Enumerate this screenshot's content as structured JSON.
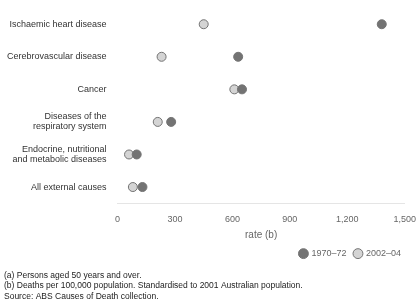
{
  "chart_data": {
    "type": "dot",
    "categories": [
      "Ischaemic heart disease",
      "Cerebrovascular disease",
      "Cancer",
      "Diseases of the\nrespiratory system",
      "Endocrine, nutritional\nand metabolic diseases",
      "All external causes"
    ],
    "series": [
      {
        "name": "1970–72",
        "color": "#737373",
        "marker": "circle",
        "values": [
          1380,
          630,
          650,
          280,
          100,
          130
        ]
      },
      {
        "name": "2002–04",
        "color": "#d4d4d4",
        "marker": "circle",
        "values": [
          450,
          230,
          610,
          210,
          60,
          80
        ]
      }
    ],
    "xlabel": "rate (b)",
    "xlim": [
      0,
      1500
    ],
    "xticks": [
      0,
      300,
      600,
      900,
      1200,
      1500
    ],
    "grid": false,
    "legend": "lower right",
    "annotations": [
      "(a) Persons aged 50 years and over.",
      "(b) Deaths per 100,000 population. Standardised to 2001 Australian population.",
      "Source: ABS Causes of Death collection."
    ]
  }
}
